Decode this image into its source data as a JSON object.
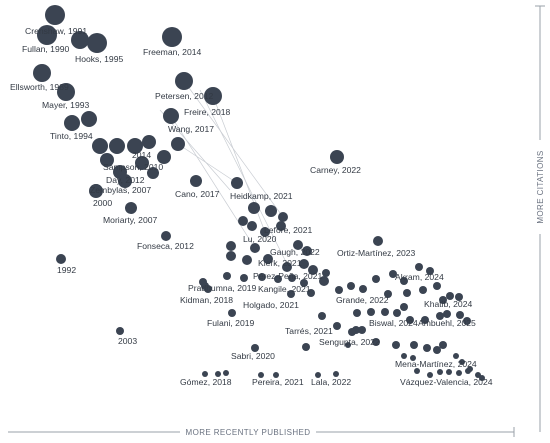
{
  "axes": {
    "x_label": "MORE RECENTLY PUBLISHED",
    "y_label": "MORE CITATIONS"
  },
  "colors": {
    "node": "#3b4452",
    "edge": "#c8ccd2",
    "axis": "#9aa0a8"
  },
  "graph": {
    "papers": [
      {
        "id": "crenshaw",
        "label": "Crenshaw, 1991"
      },
      {
        "id": "fullan",
        "label": "Fullan, 1990"
      },
      {
        "id": "hooks",
        "label": "Hooks, 1995"
      },
      {
        "id": "freeman",
        "label": "Freeman, 2014"
      },
      {
        "id": "ellsworth",
        "label": "Ellsworth, 1989"
      },
      {
        "id": "mayer",
        "label": "Mayer, 1993"
      },
      {
        "id": "petersen",
        "label": "Petersen, 2012"
      },
      {
        "id": "freire",
        "label": "Freire, 2018"
      },
      {
        "id": "tinto",
        "label": "Tinto, 1994"
      },
      {
        "id": "wang",
        "label": "Wang, 2017"
      },
      {
        "id": "u2014",
        "label": "2014"
      },
      {
        "id": "sampson",
        "label": "Sampson, 2010"
      },
      {
        "id": "day",
        "label": "Day, 2012"
      },
      {
        "id": "zembylas",
        "label": "Zembylas, 2007"
      },
      {
        "id": "carney",
        "label": "Carney, 2022"
      },
      {
        "id": "heidkamp",
        "label": "Heidkamp, 2021"
      },
      {
        "id": "cano",
        "label": "Cano, 2017"
      },
      {
        "id": "y2000",
        "label": "2000"
      },
      {
        "id": "moriarty",
        "label": "Moriarty, 2007"
      },
      {
        "id": "lefore",
        "label": "Lefore, 2021"
      },
      {
        "id": "lu",
        "label": "Lu, 2020"
      },
      {
        "id": "fonseca",
        "label": "Fonseca, 2012"
      },
      {
        "id": "ortiz",
        "label": "Ortiz-Martínez, 2023"
      },
      {
        "id": "gaugh",
        "label": "Gaugh, 2022"
      },
      {
        "id": "klerk",
        "label": "Klerk, 2021"
      },
      {
        "id": "y1992",
        "label": "1992"
      },
      {
        "id": "perez",
        "label": "Pérez-Peña, 2021"
      },
      {
        "id": "kangile",
        "label": "Kangile, 2021"
      },
      {
        "id": "akram",
        "label": "Akram, 2024"
      },
      {
        "id": "pradhumna",
        "label": "Pradhumna, 2019"
      },
      {
        "id": "grande",
        "label": "Grande, 2022"
      },
      {
        "id": "kidman",
        "label": "Kidman, 2018"
      },
      {
        "id": "holgado",
        "label": "Holgado, 2021"
      },
      {
        "id": "khatib",
        "label": "Khatib, 2024"
      },
      {
        "id": "fulani",
        "label": "Fulani, 2019"
      },
      {
        "id": "biswal",
        "label": "Biswal, 2024"
      },
      {
        "id": "ambuehl",
        "label": "Ambuehl, 2025"
      },
      {
        "id": "tarres",
        "label": "Tarrés, 2021"
      },
      {
        "id": "y2003",
        "label": "2003"
      },
      {
        "id": "sengupta",
        "label": "Sengupta, 2022"
      },
      {
        "id": "sabri",
        "label": "Sabri, 2020"
      },
      {
        "id": "mena",
        "label": "Mena-Martínez, 2024"
      },
      {
        "id": "gomez",
        "label": "Gómez, 2018"
      },
      {
        "id": "pereira",
        "label": "Pereira, 2021"
      },
      {
        "id": "lala",
        "label": "Lala, 2022"
      },
      {
        "id": "vazquez",
        "label": "Vázquez-Valencia, 2024"
      }
    ]
  }
}
